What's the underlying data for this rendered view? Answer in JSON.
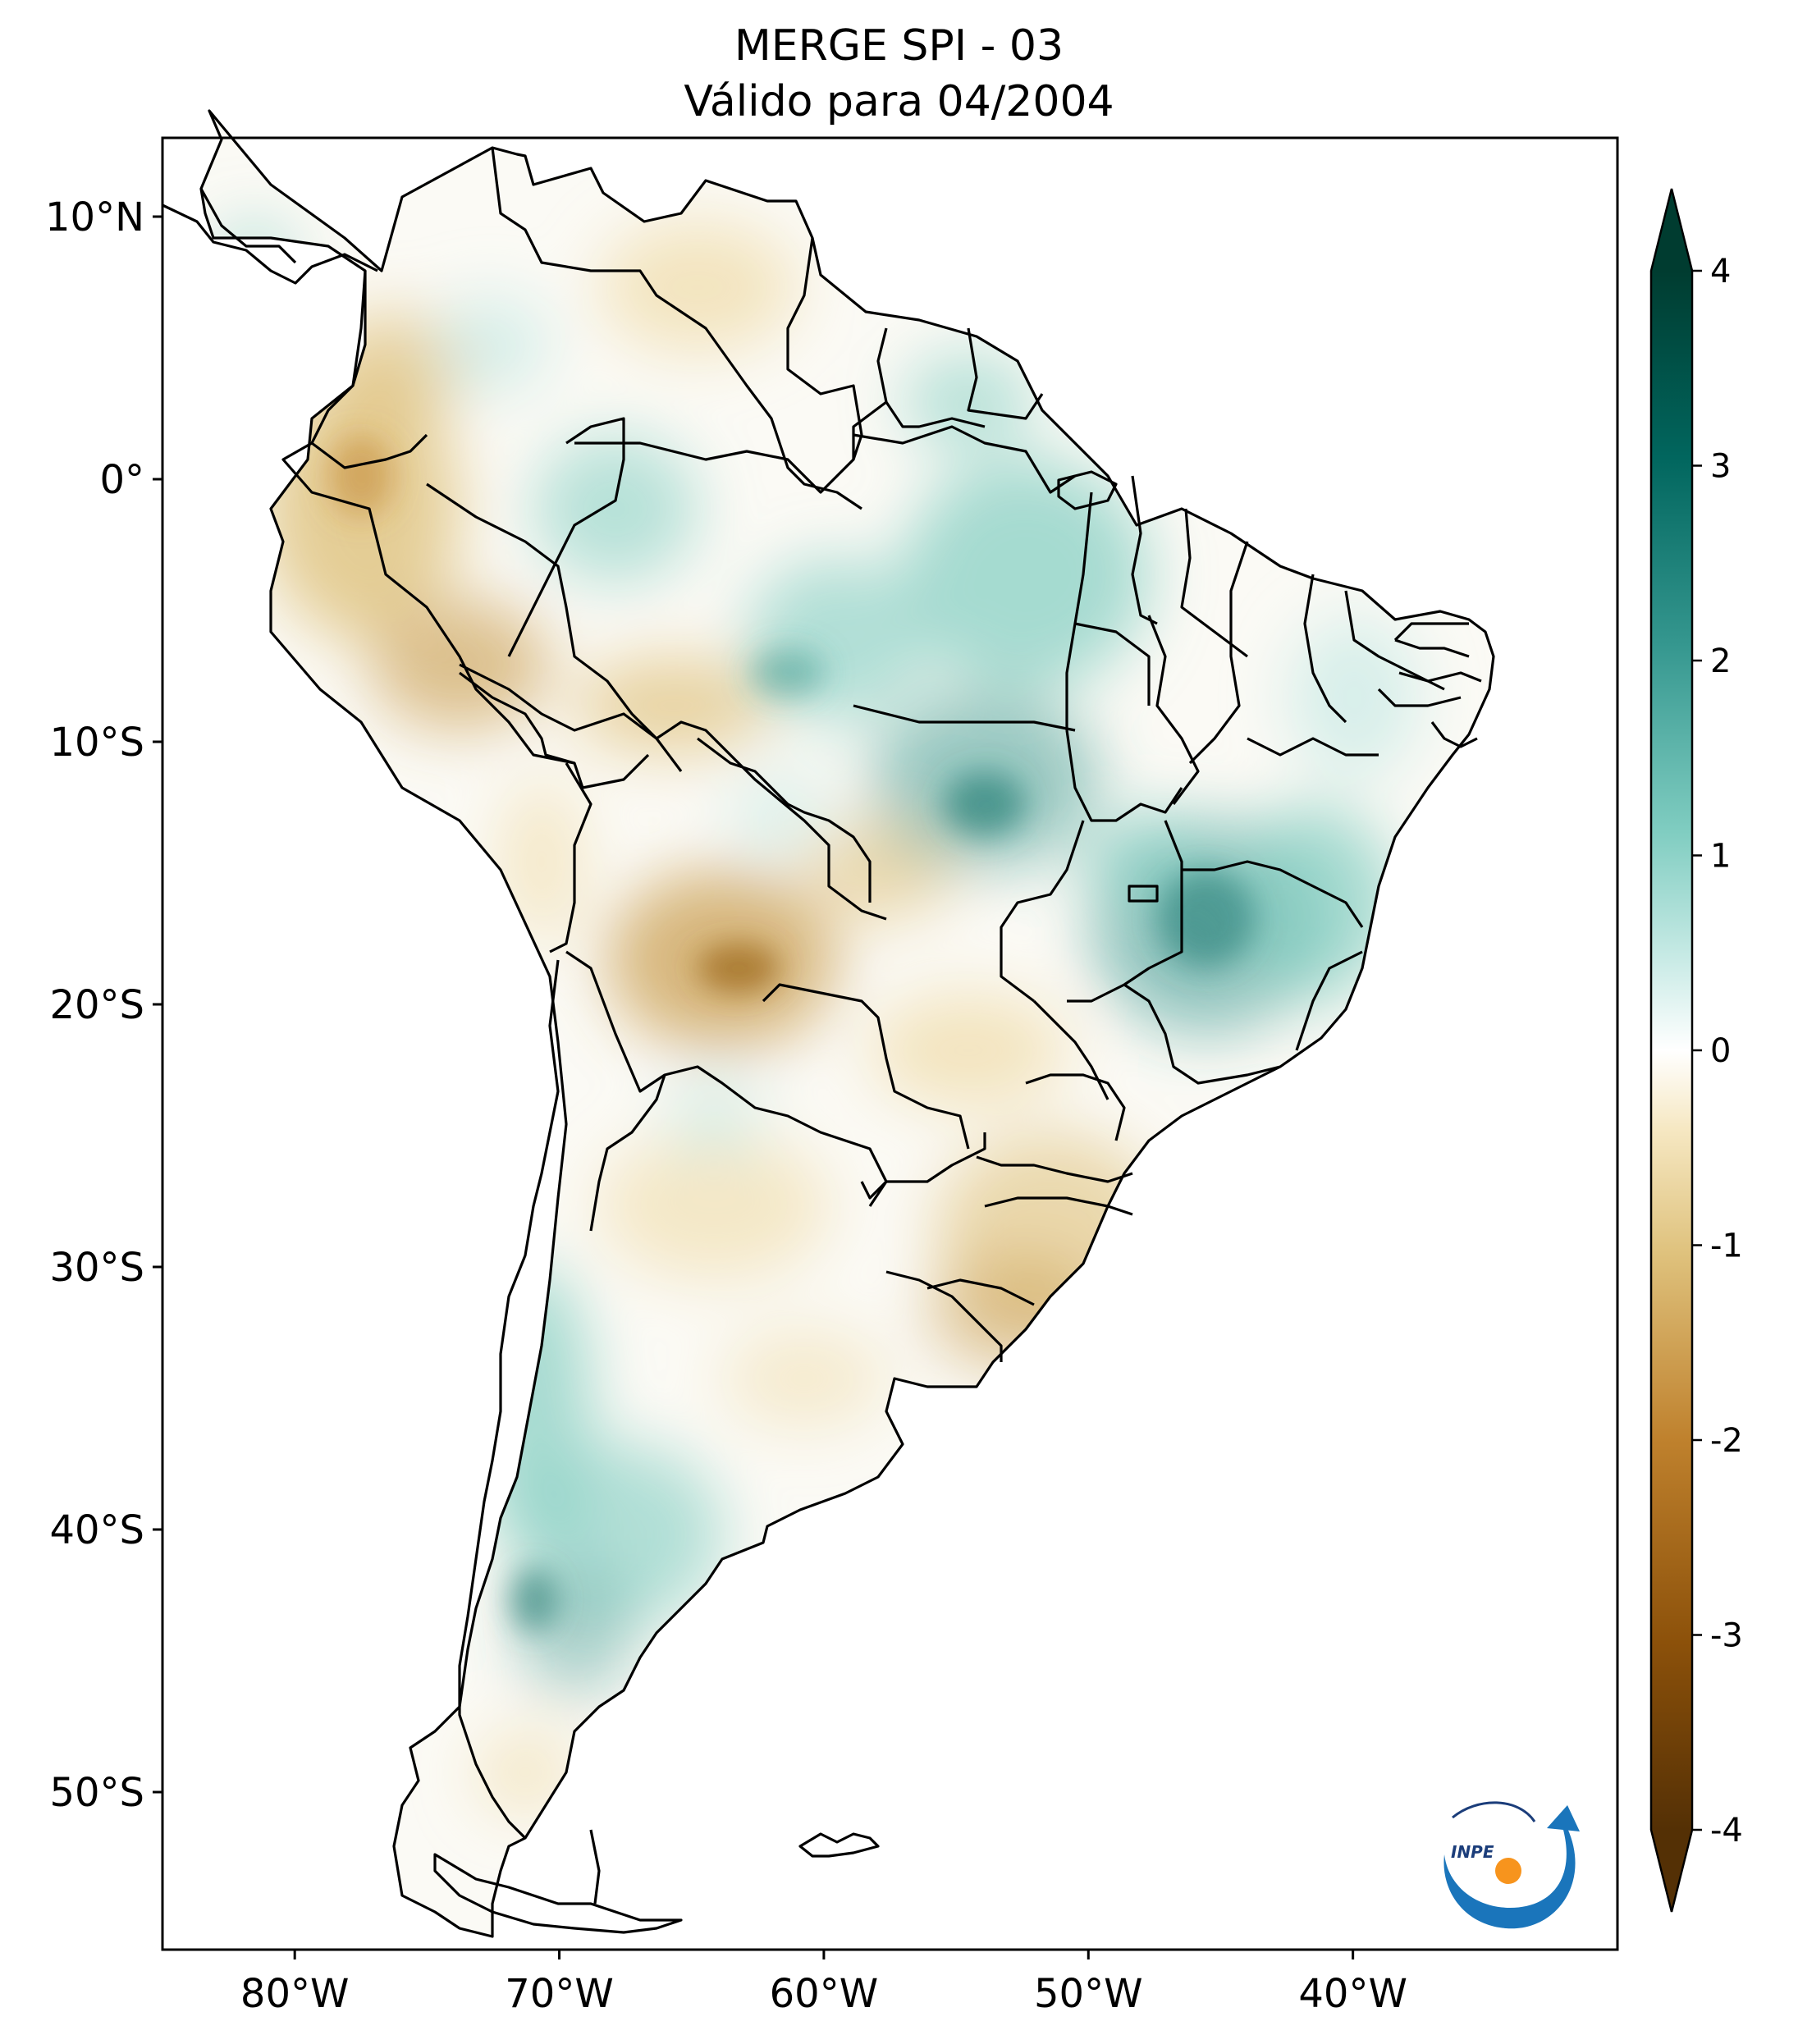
{
  "title": {
    "line1": "MERGE   SPI - 03",
    "line2": "Válido para 04/2004"
  },
  "map": {
    "lon_range": [
      -85,
      -30
    ],
    "lat_range": [
      -56,
      13
    ],
    "lat_ticks": [
      {
        "value": 10,
        "label": "10°N"
      },
      {
        "value": 0,
        "label": "0°"
      },
      {
        "value": -10,
        "label": "10°S"
      },
      {
        "value": -20,
        "label": "20°S"
      },
      {
        "value": -30,
        "label": "30°S"
      },
      {
        "value": -40,
        "label": "40°S"
      },
      {
        "value": -50,
        "label": "50°S"
      }
    ],
    "lon_ticks": [
      {
        "value": -80,
        "label": "80°W"
      },
      {
        "value": -70,
        "label": "70°W"
      },
      {
        "value": -60,
        "label": "60°W"
      },
      {
        "value": -50,
        "label": "50°W"
      },
      {
        "value": -40,
        "label": "40°W"
      }
    ]
  },
  "colorbar": {
    "min": -4,
    "max": 4,
    "ticks": [
      {
        "value": 4,
        "label": "4"
      },
      {
        "value": 3,
        "label": "3"
      },
      {
        "value": 2,
        "label": "2"
      },
      {
        "value": 1,
        "label": "1"
      },
      {
        "value": 0,
        "label": "0"
      },
      {
        "value": -1,
        "label": "-1"
      },
      {
        "value": -2,
        "label": "-2"
      },
      {
        "value": -3,
        "label": "-3"
      },
      {
        "value": -4,
        "label": "-4"
      }
    ],
    "colors": {
      "dry_extreme": "#543005",
      "dry_strong": "#8c510a",
      "dry_moderate": "#bf812d",
      "dry_mild": "#dfc27d",
      "dry_light": "#f6e8c3",
      "neutral": "#ffffff",
      "wet_light": "#c7eae5",
      "wet_mild": "#80cdc1",
      "wet_moderate": "#35978f",
      "wet_strong": "#01665e",
      "wet_extreme": "#003c30"
    }
  },
  "logo": {
    "text": "INPE"
  }
}
